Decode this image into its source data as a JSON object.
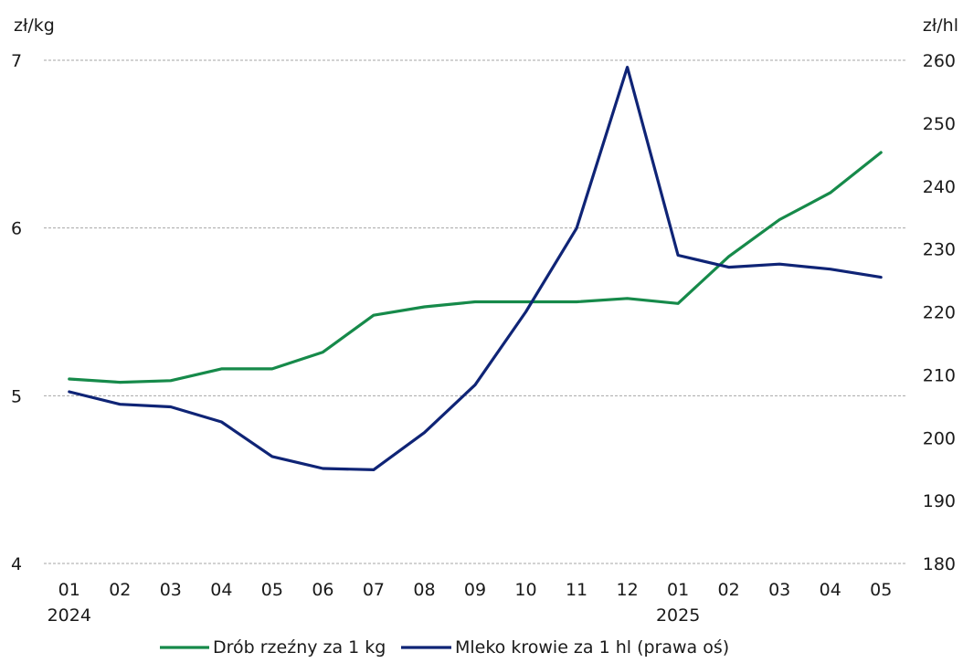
{
  "chart_data": {
    "type": "line",
    "left_unit": "zł/kg",
    "right_unit": "zł/hl",
    "categories": [
      "01",
      "02",
      "03",
      "04",
      "05",
      "06",
      "07",
      "08",
      "09",
      "10",
      "11",
      "12",
      "01",
      "02",
      "03",
      "04",
      "05"
    ],
    "year_labels": [
      {
        "index": 0,
        "label": "2024"
      },
      {
        "index": 12,
        "label": "2025"
      }
    ],
    "y_left": {
      "min": 4,
      "max": 7,
      "ticks": [
        "4",
        "5",
        "6",
        "7"
      ]
    },
    "y_right": {
      "min": 180,
      "max": 260,
      "ticks": [
        "180",
        "190",
        "200",
        "210",
        "220",
        "230",
        "240",
        "250",
        "260"
      ]
    },
    "grid": "horizontal",
    "series": [
      {
        "name": "Drób rzeźny za 1 kg",
        "axis": "left",
        "color": "#168a4a",
        "values": [
          5.1,
          5.08,
          5.09,
          5.16,
          5.16,
          5.26,
          5.48,
          5.53,
          5.56,
          5.56,
          5.56,
          5.58,
          5.55,
          5.83,
          6.05,
          6.21,
          6.45
        ]
      },
      {
        "name": "Mleko krowie za 1 hl (prawa oś)",
        "axis": "right",
        "color": "#0f2476",
        "values": [
          207.3,
          205.3,
          204.9,
          202.5,
          197.0,
          195.1,
          194.9,
          200.8,
          208.4,
          220.0,
          233.3,
          258.9,
          229.0,
          227.1,
          227.6,
          226.8,
          225.5
        ]
      }
    ],
    "legend_position": "bottom-center"
  }
}
